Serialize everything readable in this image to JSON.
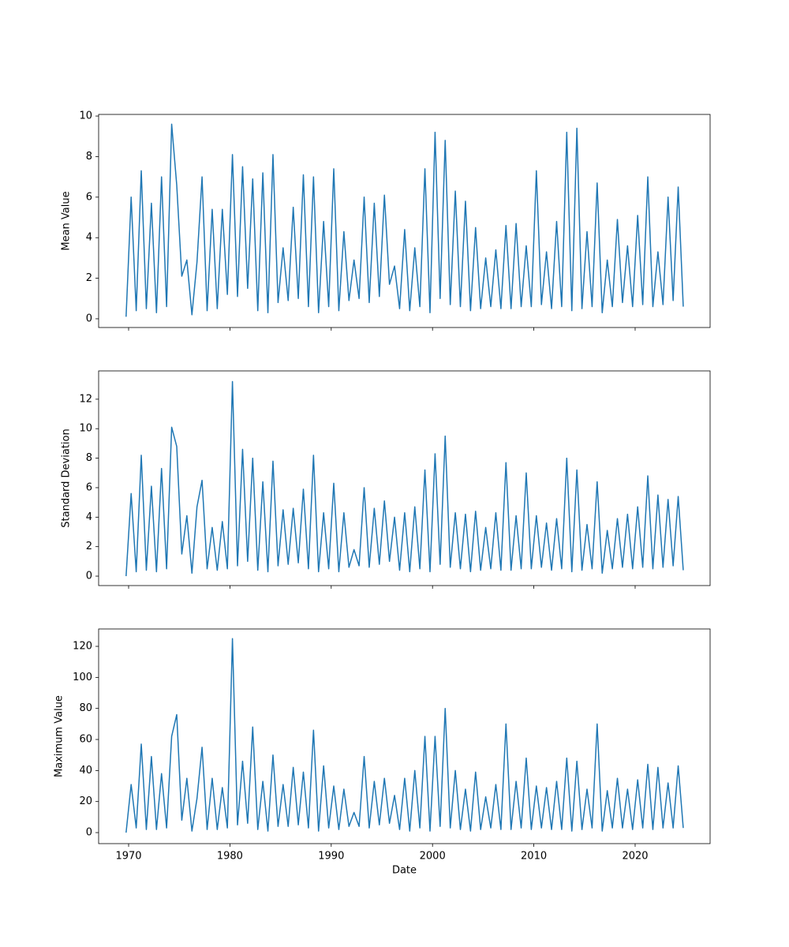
{
  "chart_data": [
    {
      "type": "line",
      "ylabel": "Mean Value",
      "color": "#1f77b4",
      "x": [
        1969.75,
        1970.25,
        1970.75,
        1971.25,
        1971.75,
        1972.25,
        1972.75,
        1973.25,
        1973.75,
        1974.25,
        1974.75,
        1975.25,
        1975.75,
        1976.25,
        1976.75,
        1977.25,
        1977.75,
        1978.25,
        1978.75,
        1979.25,
        1979.75,
        1980.25,
        1980.75,
        1981.25,
        1981.75,
        1982.25,
        1982.75,
        1983.25,
        1983.75,
        1984.25,
        1984.75,
        1985.25,
        1985.75,
        1986.25,
        1986.75,
        1987.25,
        1987.75,
        1988.25,
        1988.75,
        1989.25,
        1989.75,
        1990.25,
        1990.75,
        1991.25,
        1991.75,
        1992.25,
        1992.75,
        1993.25,
        1993.75,
        1994.25,
        1994.75,
        1995.25,
        1995.75,
        1996.25,
        1996.75,
        1997.25,
        1997.75,
        1998.25,
        1998.75,
        1999.25,
        1999.75,
        2000.25,
        2000.75,
        2001.25,
        2001.75,
        2002.25,
        2002.75,
        2003.25,
        2003.75,
        2004.25,
        2004.75,
        2005.25,
        2005.75,
        2006.25,
        2006.75,
        2007.25,
        2007.75,
        2008.25,
        2008.75,
        2009.25,
        2009.75,
        2010.25,
        2010.75,
        2011.25,
        2011.75,
        2012.25,
        2012.75,
        2013.25,
        2013.75,
        2014.25,
        2014.75,
        2015.25,
        2015.75,
        2016.25,
        2016.75,
        2017.25,
        2017.75,
        2018.25,
        2018.75,
        2019.25,
        2019.75,
        2020.25,
        2020.75,
        2021.25,
        2021.75,
        2022.25,
        2022.75,
        2023.25,
        2023.75,
        2024.25,
        2024.75
      ],
      "values": [
        0.1,
        6.0,
        0.4,
        7.3,
        0.5,
        5.7,
        0.3,
        7.0,
        0.6,
        9.6,
        6.6,
        2.1,
        2.9,
        0.2,
        2.8,
        7.0,
        0.4,
        5.4,
        0.5,
        5.4,
        1.2,
        8.1,
        1.1,
        7.5,
        1.5,
        6.9,
        0.4,
        7.2,
        0.3,
        8.1,
        0.8,
        3.5,
        0.9,
        5.5,
        1.0,
        7.1,
        0.6,
        7.0,
        0.3,
        4.8,
        0.6,
        7.4,
        0.4,
        4.3,
        0.9,
        2.9,
        1.0,
        6.0,
        0.8,
        5.7,
        1.1,
        6.1,
        1.7,
        2.6,
        0.5,
        4.4,
        0.4,
        3.5,
        0.6,
        7.4,
        0.3,
        9.2,
        1.0,
        8.8,
        0.7,
        6.3,
        0.6,
        5.8,
        0.4,
        4.5,
        0.5,
        3.0,
        0.6,
        3.4,
        0.5,
        4.6,
        0.5,
        4.7,
        0.6,
        3.6,
        0.6,
        7.3,
        0.7,
        3.3,
        0.5,
        4.8,
        0.6,
        9.2,
        0.4,
        9.4,
        0.5,
        4.3,
        0.6,
        6.7,
        0.3,
        2.9,
        0.6,
        4.9,
        0.8,
        3.6,
        0.6,
        5.1,
        0.7,
        7.0,
        0.6,
        3.3,
        0.7,
        6.0,
        0.9,
        6.5,
        0.6
      ],
      "xlim": [
        1967.04,
        2027.4
      ],
      "xticks": [
        1970,
        1980,
        1990,
        2000,
        2010,
        2020
      ],
      "ylim": [
        -0.43,
        10.08
      ],
      "yticks": [
        0,
        2,
        4,
        6,
        8,
        10
      ]
    },
    {
      "type": "line",
      "ylabel": "Standard Deviation",
      "color": "#1f77b4",
      "x": [
        1969.75,
        1970.25,
        1970.75,
        1971.25,
        1971.75,
        1972.25,
        1972.75,
        1973.25,
        1973.75,
        1974.25,
        1974.75,
        1975.25,
        1975.75,
        1976.25,
        1976.75,
        1977.25,
        1977.75,
        1978.25,
        1978.75,
        1979.25,
        1979.75,
        1980.25,
        1980.75,
        1981.25,
        1981.75,
        1982.25,
        1982.75,
        1983.25,
        1983.75,
        1984.25,
        1984.75,
        1985.25,
        1985.75,
        1986.25,
        1986.75,
        1987.25,
        1987.75,
        1988.25,
        1988.75,
        1989.25,
        1989.75,
        1990.25,
        1990.75,
        1991.25,
        1991.75,
        1992.25,
        1992.75,
        1993.25,
        1993.75,
        1994.25,
        1994.75,
        1995.25,
        1995.75,
        1996.25,
        1996.75,
        1997.25,
        1997.75,
        1998.25,
        1998.75,
        1999.25,
        1999.75,
        2000.25,
        2000.75,
        2001.25,
        2001.75,
        2002.25,
        2002.75,
        2003.25,
        2003.75,
        2004.25,
        2004.75,
        2005.25,
        2005.75,
        2006.25,
        2006.75,
        2007.25,
        2007.75,
        2008.25,
        2008.75,
        2009.25,
        2009.75,
        2010.25,
        2010.75,
        2011.25,
        2011.75,
        2012.25,
        2012.75,
        2013.25,
        2013.75,
        2014.25,
        2014.75,
        2015.25,
        2015.75,
        2016.25,
        2016.75,
        2017.25,
        2017.75,
        2018.25,
        2018.75,
        2019.25,
        2019.75,
        2020.25,
        2020.75,
        2021.25,
        2021.75,
        2022.25,
        2022.75,
        2023.25,
        2023.75,
        2024.25,
        2024.75
      ],
      "values": [
        0.0,
        5.6,
        0.3,
        8.2,
        0.4,
        6.1,
        0.3,
        7.3,
        0.5,
        10.1,
        8.8,
        1.5,
        4.1,
        0.2,
        4.7,
        6.5,
        0.5,
        3.3,
        0.4,
        3.7,
        0.5,
        13.2,
        0.7,
        8.6,
        1.0,
        8.0,
        0.4,
        6.4,
        0.3,
        7.8,
        0.7,
        4.5,
        0.8,
        4.6,
        0.9,
        5.9,
        0.5,
        8.2,
        0.3,
        4.3,
        0.5,
        6.3,
        0.3,
        4.3,
        0.6,
        1.8,
        0.7,
        6.0,
        0.6,
        4.6,
        0.8,
        5.1,
        1.0,
        4.0,
        0.4,
        4.3,
        0.3,
        4.7,
        0.5,
        7.2,
        0.3,
        8.3,
        0.8,
        9.5,
        0.6,
        4.3,
        0.5,
        4.2,
        0.3,
        4.4,
        0.4,
        3.3,
        0.5,
        4.3,
        0.4,
        7.7,
        0.4,
        4.1,
        0.5,
        7.0,
        0.5,
        4.1,
        0.6,
        3.6,
        0.4,
        3.9,
        0.5,
        8.0,
        0.3,
        7.2,
        0.4,
        3.5,
        0.5,
        6.4,
        0.2,
        3.1,
        0.5,
        3.9,
        0.6,
        4.2,
        0.5,
        4.7,
        0.6,
        6.8,
        0.5,
        5.5,
        0.6,
        5.2,
        0.7,
        5.4,
        0.4
      ],
      "xlim": [
        1967.04,
        2027.4
      ],
      "xticks": [
        1970,
        1980,
        1990,
        2000,
        2010,
        2020
      ],
      "ylim": [
        -0.64,
        13.92
      ],
      "yticks": [
        0,
        2,
        4,
        6,
        8,
        10,
        12
      ]
    },
    {
      "type": "line",
      "ylabel": "Maximum Value",
      "xlabel": "Date",
      "color": "#1f77b4",
      "x": [
        1969.75,
        1970.25,
        1970.75,
        1971.25,
        1971.75,
        1972.25,
        1972.75,
        1973.25,
        1973.75,
        1974.25,
        1974.75,
        1975.25,
        1975.75,
        1976.25,
        1976.75,
        1977.25,
        1977.75,
        1978.25,
        1978.75,
        1979.25,
        1979.75,
        1980.25,
        1980.75,
        1981.25,
        1981.75,
        1982.25,
        1982.75,
        1983.25,
        1983.75,
        1984.25,
        1984.75,
        1985.25,
        1985.75,
        1986.25,
        1986.75,
        1987.25,
        1987.75,
        1988.25,
        1988.75,
        1989.25,
        1989.75,
        1990.25,
        1990.75,
        1991.25,
        1991.75,
        1992.25,
        1992.75,
        1993.25,
        1993.75,
        1994.25,
        1994.75,
        1995.25,
        1995.75,
        1996.25,
        1996.75,
        1997.25,
        1997.75,
        1998.25,
        1998.75,
        1999.25,
        1999.75,
        2000.25,
        2000.75,
        2001.25,
        2001.75,
        2002.25,
        2002.75,
        2003.25,
        2003.75,
        2004.25,
        2004.75,
        2005.25,
        2005.75,
        2006.25,
        2006.75,
        2007.25,
        2007.75,
        2008.25,
        2008.75,
        2009.25,
        2009.75,
        2010.25,
        2010.75,
        2011.25,
        2011.75,
        2012.25,
        2012.75,
        2013.25,
        2013.75,
        2014.25,
        2014.75,
        2015.25,
        2015.75,
        2016.25,
        2016.75,
        2017.25,
        2017.75,
        2018.25,
        2018.75,
        2019.25,
        2019.75,
        2020.25,
        2020.75,
        2021.25,
        2021.75,
        2022.25,
        2022.75,
        2023.25,
        2023.75,
        2024.25,
        2024.75
      ],
      "values": [
        0,
        31,
        3,
        57,
        2,
        49,
        2,
        38,
        3,
        62,
        76,
        8,
        35,
        1,
        22,
        55,
        2,
        35,
        2,
        29,
        3,
        125,
        5,
        46,
        6,
        68,
        2,
        33,
        1,
        50,
        4,
        31,
        4,
        42,
        5,
        39,
        3,
        66,
        1,
        43,
        3,
        30,
        2,
        28,
        4,
        13,
        4,
        49,
        3,
        33,
        5,
        35,
        6,
        24,
        2,
        35,
        1,
        40,
        3,
        62,
        1,
        62,
        4,
        80,
        3,
        40,
        2,
        28,
        1,
        39,
        2,
        23,
        3,
        31,
        2,
        70,
        2,
        33,
        3,
        48,
        2,
        30,
        3,
        29,
        2,
        33,
        2,
        48,
        1,
        46,
        2,
        28,
        3,
        70,
        1,
        27,
        3,
        35,
        3,
        28,
        2,
        34,
        3,
        44,
        2,
        42,
        3,
        32,
        3,
        43,
        3
      ],
      "xlim": [
        1967.04,
        2027.4
      ],
      "xticks": [
        1970,
        1980,
        1990,
        2000,
        2010,
        2020
      ],
      "ylim": [
        -7.1,
        131.2
      ],
      "yticks": [
        0,
        20,
        40,
        60,
        80,
        100,
        120
      ]
    }
  ]
}
